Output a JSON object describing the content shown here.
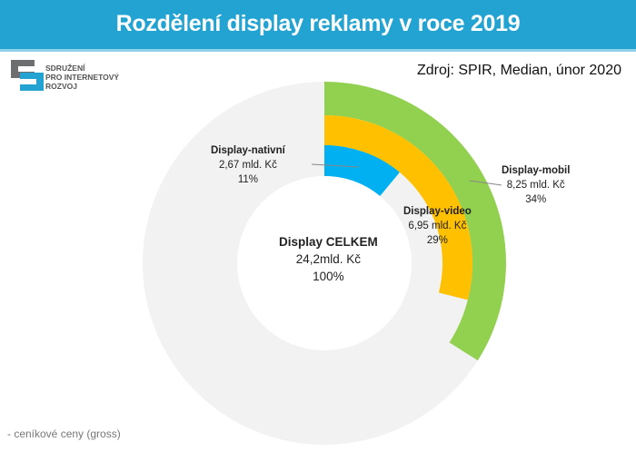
{
  "header": {
    "title": "Rozdělení display reklamy v roce 2019"
  },
  "logo": {
    "lines": [
      "SDRUŽENÍ",
      "PRO INTERNETOVÝ",
      "ROZVOJ"
    ]
  },
  "source": "Zdroj: SPIR, Median, únor 2020",
  "note": "- ceníkové ceny (gross)",
  "colors": {
    "header": "#22a3d2",
    "mobil": "#92d050",
    "video": "#ffc000",
    "nativni": "#00b0f0",
    "background_ring": "#f2f2f2"
  },
  "chart_data": {
    "type": "pie",
    "subtype": "nested-donut",
    "unit": "mld. Kč",
    "total": {
      "label": "Display CELKEM",
      "value_text": "24,2mld. Kč",
      "percent_text": "100%",
      "value": 24.2,
      "percent": 100
    },
    "series": [
      {
        "name": "Display-mobil",
        "value": 8.25,
        "value_text": "8,25 mld. Kč",
        "percent": 34,
        "percent_text": "34%",
        "ring": "outer"
      },
      {
        "name": "Display-video",
        "value": 6.95,
        "value_text": "6,95 mld. Kč",
        "percent": 29,
        "percent_text": "29%",
        "ring": "middle"
      },
      {
        "name": "Display-nativní",
        "value": 2.67,
        "value_text": "2,67 mld. Kč",
        "percent": 11,
        "percent_text": "11%",
        "ring": "inner"
      }
    ]
  }
}
